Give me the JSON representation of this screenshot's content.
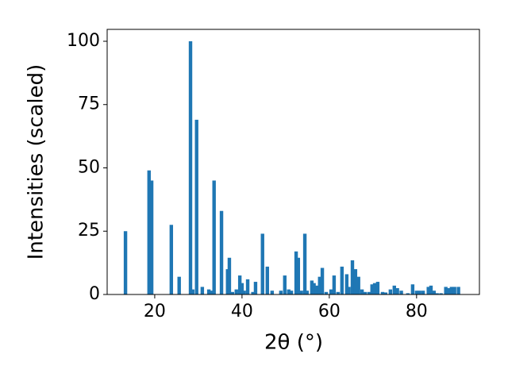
{
  "chart_data": {
    "type": "bar",
    "x_label": "2θ (°)",
    "y_label": "Intensities (scaled)",
    "color": "#1f77b4",
    "x": [
      13.3,
      18.7,
      19.3,
      23.8,
      25.6,
      28.2,
      28.7,
      29.6,
      30.9,
      32.4,
      32.9,
      33.6,
      35.3,
      36.7,
      37.1,
      37.8,
      38.7,
      39.5,
      40.0,
      40.5,
      41.3,
      42.5,
      43.1,
      44.7,
      45.8,
      46.9,
      48.9,
      49.8,
      50.7,
      51.3,
      52.4,
      52.9,
      53.6,
      54.4,
      54.9,
      56.0,
      56.5,
      57.1,
      57.8,
      58.4,
      59.3,
      60.4,
      61.1,
      62.0,
      62.9,
      64.0,
      64.5,
      65.3,
      66.0,
      66.7,
      67.5,
      68.2,
      69.1,
      69.8,
      70.4,
      71.1,
      72.2,
      72.9,
      74.0,
      74.9,
      75.6,
      76.5,
      78.0,
      79.1,
      80.0,
      80.7,
      81.5,
      82.7,
      83.3,
      84.0,
      84.7,
      85.6,
      86.7,
      87.3,
      88.0,
      88.7,
      89.6
    ],
    "values": [
      25,
      49,
      45,
      27.5,
      7,
      100,
      2,
      69,
      3,
      2,
      1.5,
      45,
      33,
      10,
      14.5,
      1,
      2,
      7.5,
      4.5,
      1.5,
      6,
      1,
      5,
      24,
      11,
      1.5,
      1.5,
      7.5,
      2,
      1.5,
      17,
      14.5,
      1.5,
      24,
      1.5,
      5.5,
      4.5,
      3.5,
      7,
      10.5,
      1,
      2,
      7.5,
      1,
      11,
      8,
      3,
      13.5,
      10,
      7,
      2,
      1,
      1,
      4,
      4.5,
      5,
      1,
      0.8,
      2,
      3.5,
      2.5,
      1.5,
      0.5,
      4,
      1.5,
      1.5,
      1.5,
      3,
      3.5,
      1.5,
      0.5,
      0.5,
      3,
      2.5,
      3,
      3,
      3
    ],
    "xlim": [
      9.1,
      94.4
    ],
    "ylim": [
      0,
      104.7
    ],
    "xticks": [
      20,
      40,
      60,
      80
    ],
    "yticks": [
      0,
      25,
      50,
      75,
      100
    ]
  }
}
